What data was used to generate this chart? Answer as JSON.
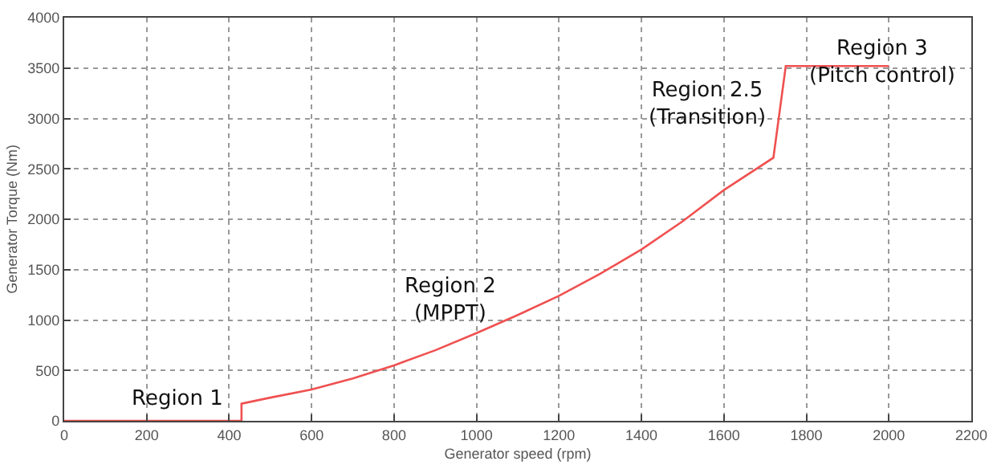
{
  "chart_data": {
    "type": "line",
    "xlabel": "Generator speed (rpm)",
    "ylabel": "Generator Torque (Nm)",
    "x": [
      0,
      430,
      430,
      500,
      600,
      700,
      800,
      900,
      1000,
      1100,
      1200,
      1300,
      1400,
      1500,
      1600,
      1720,
      1750,
      2000
    ],
    "series": [
      {
        "color": "#f05050",
        "values": [
          0,
          0,
          170,
          230,
          310,
          420,
          550,
          700,
          870,
          1050,
          1240,
          1460,
          1700,
          1980,
          2290,
          2610,
          3520,
          3520
        ]
      }
    ],
    "xlim": [
      0,
      2200
    ],
    "xticks": [
      0,
      200,
      400,
      600,
      800,
      1000,
      1200,
      1400,
      1600,
      1800,
      2000,
      2200
    ],
    "ylim": [
      0,
      4000
    ],
    "yticks": [
      0,
      500,
      1000,
      1500,
      2000,
      2500,
      3000,
      3500,
      4000
    ],
    "grid": true,
    "line_style": "solid",
    "marker": "none",
    "annotations": [
      "Region 1",
      "Region 2\n(MPPT)",
      "Region 2.5\n(Transition)",
      "Region 3\n(Pitch control)"
    ]
  }
}
